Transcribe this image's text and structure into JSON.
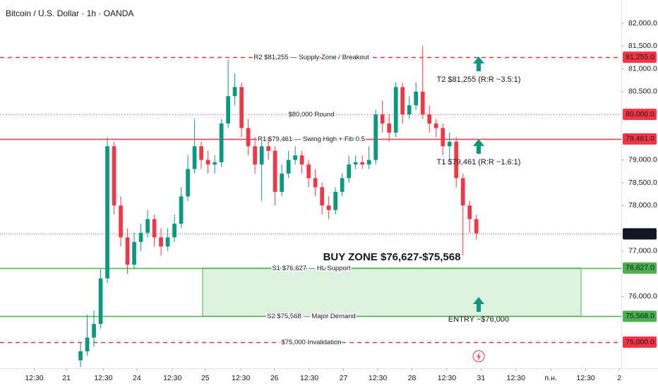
{
  "chart_data": {
    "type": "candlestick",
    "title": "Bitcoin / U.S. Dollar · 1h · OANDA",
    "up_color": "#089981",
    "down_color": "#f23645",
    "open": [
      74600,
      74800,
      75100,
      75400,
      76400,
      79300,
      78000,
      77300,
      76700,
      77200,
      77400,
      77700,
      77300,
      77100,
      77300,
      77600,
      78200,
      78800,
      79300,
      79000,
      78900,
      78950,
      79800,
      80400,
      80600,
      79700,
      79300,
      78900,
      79300,
      79200,
      78300,
      78700,
      79000,
      79100,
      78900,
      78600,
      78400,
      78000,
      77900,
      78300,
      78600,
      78900,
      78950,
      78900,
      79000,
      80000,
      79800,
      79600,
      80600,
      80000,
      80200,
      80500,
      80000,
      79800,
      79700,
      79300,
      79400,
      78600,
      78000,
      77700
    ],
    "high": [
      75000,
      75600,
      75700,
      76600,
      79500,
      79400,
      78200,
      77500,
      77400,
      77600,
      77900,
      77800,
      77500,
      77500,
      77800,
      78400,
      79100,
      79900,
      79400,
      79200,
      79100,
      79900,
      81200,
      80900,
      80700,
      79900,
      79500,
      79400,
      79500,
      79300,
      78900,
      79200,
      79300,
      79200,
      79000,
      78800,
      78500,
      78200,
      78400,
      78700,
      79100,
      79100,
      79100,
      79300,
      80100,
      80300,
      80000,
      80700,
      80700,
      80400,
      80700,
      81500,
      80200,
      79900,
      79800,
      79600,
      79500,
      78700,
      78100,
      77800
    ],
    "low": [
      74450,
      74700,
      74900,
      75300,
      76300,
      77800,
      77100,
      76500,
      76600,
      77000,
      77300,
      77100,
      76900,
      77000,
      77200,
      77500,
      78100,
      78700,
      78800,
      78700,
      78700,
      78850,
      79700,
      80200,
      79500,
      79100,
      78700,
      78100,
      79000,
      78000,
      78200,
      78600,
      78900,
      78700,
      78400,
      78200,
      77800,
      77700,
      77800,
      78200,
      78500,
      78800,
      78800,
      78800,
      78900,
      79600,
      79400,
      79500,
      79800,
      79900,
      80100,
      79900,
      79600,
      79500,
      79100,
      79000,
      78400,
      76900,
      77400,
      77250
    ],
    "close": [
      74800,
      75100,
      75400,
      76400,
      79300,
      78000,
      77300,
      76700,
      77200,
      77400,
      77700,
      77300,
      77100,
      77300,
      77600,
      78200,
      78800,
      79300,
      79000,
      78900,
      78950,
      79800,
      80400,
      80600,
      79700,
      79300,
      78900,
      79300,
      79200,
      78300,
      78700,
      79000,
      79100,
      78900,
      78600,
      78400,
      78000,
      77900,
      78300,
      78600,
      78900,
      78950,
      78900,
      79000,
      80000,
      79800,
      79600,
      80600,
      80000,
      80200,
      80500,
      80000,
      79800,
      79700,
      79300,
      79400,
      78600,
      78000,
      77700,
      77389.5
    ],
    "xlim": [
      -12,
      80.6
    ],
    "xticks": [
      {
        "value": -6.9,
        "label": "12:30"
      },
      {
        "value": -2.1,
        "label": "21"
      },
      {
        "value": 3.4,
        "label": "12:30"
      },
      {
        "value": 8.4,
        "label": "24"
      },
      {
        "value": 13.7,
        "label": "12:30"
      },
      {
        "value": 18.6,
        "label": "25"
      },
      {
        "value": 23.9,
        "label": "12:30"
      },
      {
        "value": 28.9,
        "label": "26"
      },
      {
        "value": 34.1,
        "label": "12:30"
      },
      {
        "value": 39.2,
        "label": "27"
      },
      {
        "value": 44.3,
        "label": "12:30"
      },
      {
        "value": 49.4,
        "label": "28"
      },
      {
        "value": 54.6,
        "label": "12:30"
      },
      {
        "value": 59.7,
        "label": "31"
      },
      {
        "value": 64.9,
        "label": "12:30"
      },
      {
        "value": 70.1,
        "label": "п.н."
      },
      {
        "value": 75.3,
        "label": "12:30"
      },
      {
        "value": 80.3,
        "label": "2"
      }
    ],
    "ylim": [
      74427,
      82511
    ],
    "yticks": [
      {
        "value": 82000,
        "label": "82,000.0"
      },
      {
        "value": 81500,
        "label": "81,500.0"
      },
      {
        "value": 81000,
        "label": "81,000.0"
      },
      {
        "value": 80500,
        "label": "80,500.0"
      },
      {
        "value": 79000,
        "label": "79,000.0"
      },
      {
        "value": 78500,
        "label": "78,500.0"
      },
      {
        "value": 78000,
        "label": "78,000.0"
      },
      {
        "value": 77000,
        "label": "77,000.0"
      },
      {
        "value": 76000,
        "label": "76,000.0"
      }
    ],
    "levels": [
      {
        "value": 81255,
        "label": "R2 $81,255 — Supply Zone / Breakout",
        "price_label": "81,255.0",
        "color": "#f23645",
        "style": "dashed"
      },
      {
        "value": 80000,
        "label": "$80,000 Round",
        "price_label": "80,000.0",
        "color": "#f23645",
        "style": "dotted"
      },
      {
        "value": 79461,
        "label": "R1 $79,461 — Swing High + Fib 0.5",
        "price_label": "79,461.0",
        "color": "#f23645",
        "style": "solid"
      },
      {
        "value": 76627,
        "label": "S1 $76,627 — HL Support",
        "price_label": "76,627.0",
        "color": "#4caf50",
        "style": "solid"
      },
      {
        "value": 75568,
        "label": "S2 $75,568 — Major Demand",
        "price_label": "75,568.0",
        "color": "#4caf50",
        "style": "solid"
      },
      {
        "value": 75000,
        "label": "$75,000 Invalidation",
        "price_label": "75,000.0",
        "color": "#f23645",
        "style": "dashed"
      }
    ],
    "last_price": {
      "value": 77389.5,
      "label": "77,389.5"
    },
    "annotations": [
      "BUY ZONE $76,627-$75,568",
      "T2 $81,255 (R:R ~3.5:1)",
      "T1 $79,461 (R:R ~1.6:1)",
      "ENTRY ~$76,000"
    ]
  }
}
